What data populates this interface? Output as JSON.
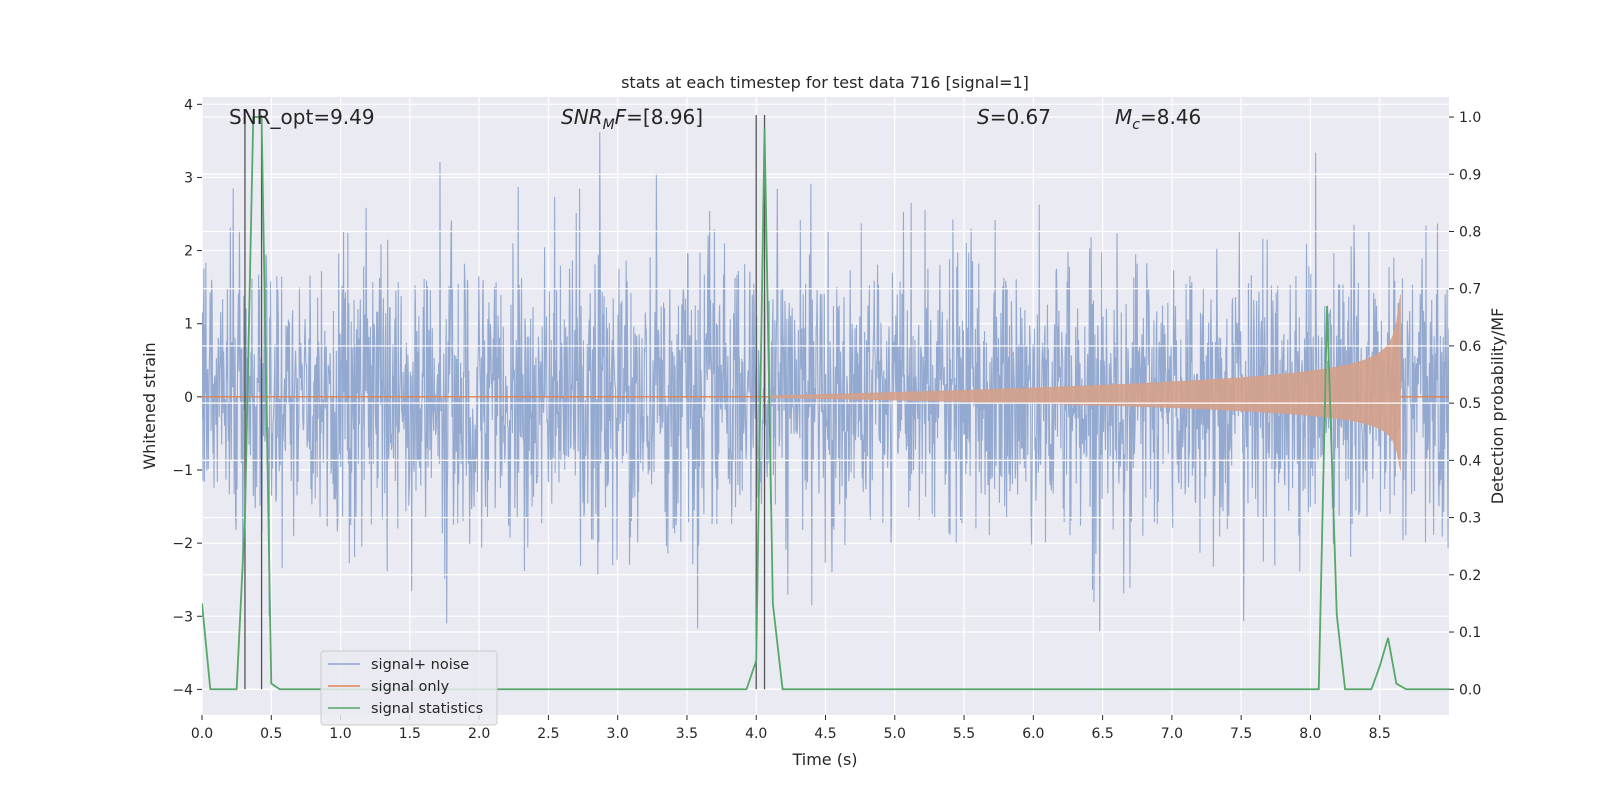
{
  "chart_data": {
    "type": "line",
    "title": "stats at each timestep for test data 716 [signal=1]",
    "xlabel": "Time (s)",
    "ylabel_left": "Whitened strain",
    "ylabel_right": "Detection probability/MF",
    "xlim": [
      0,
      9.0
    ],
    "ylim_left": [
      -4.35,
      4.1
    ],
    "ylim_right": [
      -0.045,
      1.035
    ],
    "x_ticks": [
      "0.0",
      "0.5",
      "1.0",
      "1.5",
      "2.0",
      "2.5",
      "3.0",
      "3.5",
      "4.0",
      "4.5",
      "5.0",
      "5.5",
      "6.0",
      "6.5",
      "7.0",
      "7.5",
      "8.0",
      "8.5"
    ],
    "y_left_ticks": [
      "−4",
      "−3",
      "−2",
      "−1",
      "0",
      "1",
      "2",
      "3",
      "4"
    ],
    "y_right_ticks": [
      "0.0",
      "0.1",
      "0.2",
      "0.3",
      "0.4",
      "0.5",
      "0.6",
      "0.7",
      "0.8",
      "0.9",
      "1.0"
    ],
    "grid": true,
    "legend_position": "lower-left",
    "annotations": {
      "snr_opt": "SNR_opt=9.49",
      "snr_mf_sym": "SNR",
      "snr_mf_sub": "M",
      "snr_mf_tail": "F",
      "snr_mf_val": "=[8.96]",
      "s_sym": "S",
      "s_val": "=0.67",
      "mc_sym": "M",
      "mc_sub": "c",
      "mc_val": "=8.46"
    },
    "vertical_markers": [
      0.31,
      0.43,
      4.0,
      4.06
    ],
    "series": [
      {
        "name": "signal+ noise",
        "color": "#8fa5cd",
        "noise_sd": 0.95,
        "t_start": 0,
        "t_end": 9.0
      },
      {
        "name": "signal only",
        "color": "#dd8452",
        "fill_color": "#d4a08a",
        "chirp_start": 4.1,
        "coalescence": 8.65,
        "peak_amplitude": 1.4
      },
      {
        "name": "signal statistics",
        "color": "#55a868",
        "x": [
          0.0,
          0.06,
          0.25,
          0.31,
          0.37,
          0.43,
          0.5,
          0.56,
          1.0,
          2.0,
          3.0,
          3.93,
          4.0,
          4.06,
          4.12,
          4.19,
          5.0,
          6.0,
          7.0,
          8.06,
          8.12,
          8.19,
          8.25,
          8.44,
          8.5,
          8.56,
          8.62,
          8.69,
          9.0
        ],
        "y": [
          0.15,
          0.0,
          0.0,
          0.3,
          1.0,
          1.0,
          0.01,
          0.0,
          0.0,
          0.0,
          0.0,
          0.0,
          0.05,
          0.98,
          0.15,
          0.0,
          0.0,
          0.0,
          0.0,
          0.0,
          0.67,
          0.13,
          0.0,
          0.0,
          0.04,
          0.09,
          0.01,
          0.0,
          0.0
        ]
      }
    ]
  }
}
